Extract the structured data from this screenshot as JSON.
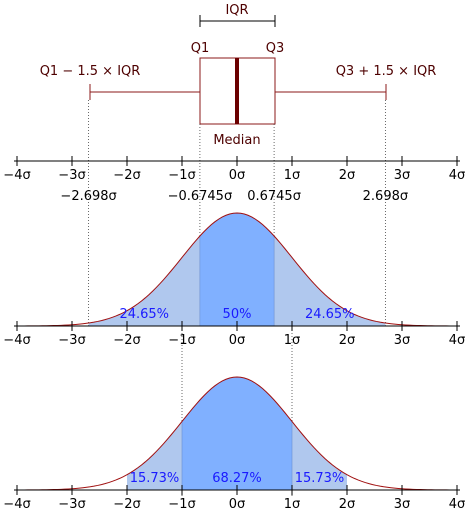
{
  "chart_data": {
    "type": "boxplot-normal-distribution",
    "sigma_ticks": [
      -4,
      -3,
      -2,
      -1,
      0,
      1,
      2,
      3,
      4
    ],
    "tick_labels": [
      "−4σ",
      "−3σ",
      "−2σ",
      "−1σ",
      "0σ",
      "1σ",
      "2σ",
      "3σ",
      "4σ"
    ],
    "boxplot": {
      "q1": -0.6745,
      "median": 0,
      "q3": 0.6745,
      "lower_whisker": -2.698,
      "upper_whisker": 2.698,
      "iqr_label": "IQR",
      "q1_label": "Q1",
      "q3_label": "Q3",
      "median_label": "Median",
      "lower_whisker_label": "Q1 − 1.5 × IQR",
      "upper_whisker_label": "Q3 + 1.5 × IQR"
    },
    "reference_values": [
      {
        "value": -2.698,
        "label": "−2.698σ"
      },
      {
        "value": -0.6745,
        "label": "−0.6745σ"
      },
      {
        "value": 0.6745,
        "label": "0.6745σ"
      },
      {
        "value": 2.698,
        "label": "2.698σ"
      }
    ],
    "density_iqr": {
      "regions": [
        {
          "from": -2.698,
          "to": -0.6745,
          "percent": "24.65%"
        },
        {
          "from": -0.6745,
          "to": 0.6745,
          "percent": "50%"
        },
        {
          "from": 0.6745,
          "to": 2.698,
          "percent": "24.65%"
        }
      ]
    },
    "density_sigma": {
      "regions": [
        {
          "from": -2,
          "to": -1,
          "percent": "15.73%"
        },
        {
          "from": -1,
          "to": 1,
          "percent": "68.27%"
        },
        {
          "from": 1,
          "to": 2,
          "percent": "15.73%"
        }
      ]
    },
    "colors": {
      "box": "#8b1a1a",
      "median": "#6b0000",
      "curve": "#a01010",
      "fill_light": "#b0c8ee",
      "fill_dark": "#80b0ff",
      "pct_text": "#1a1aff",
      "label_text": "#4d0000"
    }
  }
}
